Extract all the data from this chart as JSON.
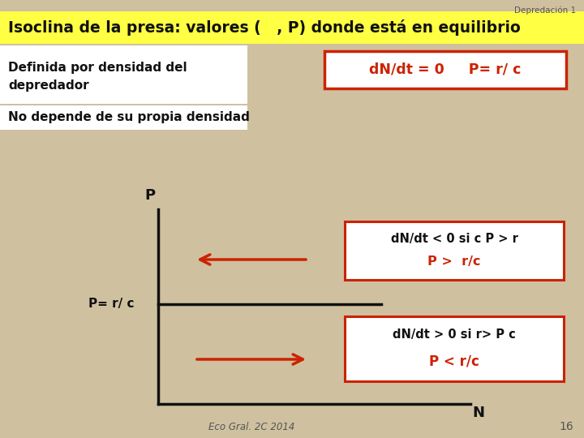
{
  "bg_color": "#cfc0a0",
  "title_text": "Depredación 1",
  "yellow_bar_text": "Isoclina de la presa: valores (   , P) donde está en equilibrio",
  "yellow_bar_color": "#ffff44",
  "white_box_color": "#ffffff",
  "orange_border": "#cc2200",
  "black_text": "#111111",
  "gray_text": "#555555",
  "red_text": "#cc2200",
  "arrow_color": "#cc2200",
  "graph_axis_color": "#111111",
  "text_definida1": "Definida por densidad del",
  "text_definida2": "depredador",
  "text_nodepende": "No depende de su propia densidad",
  "text_box_top": "dN/dt = 0     P= r/ c",
  "label_P": "P",
  "label_Prc": "P= r/ c",
  "label_N": "N",
  "upper_box_line1": "dN/dt < 0 si c P > r",
  "upper_box_line2": "P >  r/c",
  "lower_box_line1": "dN/dt > 0 si r> P c",
  "lower_box_line2": "P < r/c",
  "footer_text": "Eco Gral. 2C 2014",
  "page_num": "16"
}
